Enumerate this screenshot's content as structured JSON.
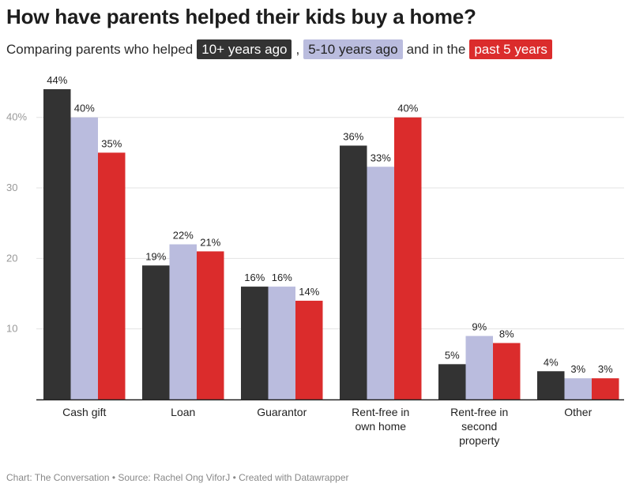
{
  "header": {
    "title": "How have parents helped their kids buy a home?",
    "subtitle_prefix": "Comparing parents who helped",
    "subtitle_sep1": ",",
    "subtitle_mid": "and in the",
    "legend": {
      "series1": "10+ years ago",
      "series2": "5-10 years ago",
      "series3": "past 5 years"
    }
  },
  "footer": {
    "text": "Chart: The Conversation • Source: Rachel Ong ViforJ • Created with Datawrapper"
  },
  "colors": {
    "series1": "#333333",
    "series2": "#babcde",
    "series3": "#db2c2c",
    "grid": "#e3e3e3",
    "axis": "#222222"
  },
  "chart_data": {
    "type": "bar",
    "title": "How have parents helped their kids buy a home?",
    "xlabel": "",
    "ylabel": "",
    "ylim": [
      0,
      44
    ],
    "yticks": [
      {
        "value": 10,
        "label": "10"
      },
      {
        "value": 20,
        "label": "20"
      },
      {
        "value": 30,
        "label": "30"
      },
      {
        "value": 40,
        "label": "40%"
      }
    ],
    "grid": true,
    "categories": [
      [
        "Cash gift"
      ],
      [
        "Loan"
      ],
      [
        "Guarantor"
      ],
      [
        "Rent-free in",
        "own home"
      ],
      [
        "Rent-free in",
        "second",
        "property"
      ],
      [
        "Other"
      ]
    ],
    "series": [
      {
        "name": "10+ years ago",
        "values": [
          44,
          19,
          16,
          36,
          5,
          4
        ],
        "labels": [
          "44%",
          "19%",
          "16%",
          "36%",
          "5%",
          "4%"
        ]
      },
      {
        "name": "5-10 years ago",
        "values": [
          40,
          22,
          16,
          33,
          9,
          3
        ],
        "labels": [
          "40%",
          "22%",
          "16%",
          "33%",
          "9%",
          "3%"
        ]
      },
      {
        "name": "past 5 years",
        "values": [
          35,
          21,
          14,
          40,
          8,
          3
        ],
        "labels": [
          "35%",
          "21%",
          "14%",
          "40%",
          "8%",
          "3%"
        ]
      }
    ]
  }
}
